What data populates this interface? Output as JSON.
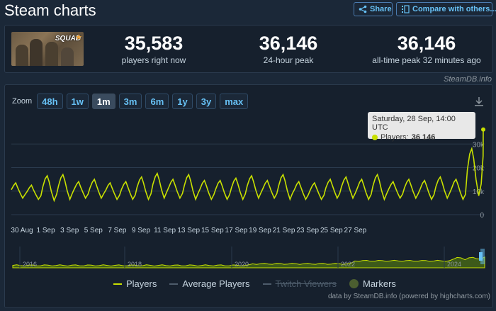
{
  "header": {
    "title": "Steam charts",
    "share_label": "Share",
    "compare_label": "Compare with others..."
  },
  "game": {
    "logo_text": "SQUAD"
  },
  "stats": [
    {
      "value": "35,583",
      "label": "players right now"
    },
    {
      "value": "36,146",
      "label": "24-hour peak"
    },
    {
      "value": "36,146",
      "label": "all-time peak 32 minutes ago"
    }
  ],
  "credit": "SteamDB.info",
  "zoom": {
    "label": "Zoom",
    "options": [
      "48h",
      "1w",
      "1m",
      "3m",
      "6m",
      "1y",
      "3y",
      "max"
    ],
    "active": "1m"
  },
  "tooltip": {
    "date": "Saturday, 28 Sep, 14:00 UTC",
    "series_label": "Players:",
    "value": "36 146"
  },
  "legend": {
    "players": "Players",
    "average": "Average Players",
    "twitch": "Twitch Viewers",
    "markers": "Markers"
  },
  "footer": "data by SteamDB.info (powered by highcharts.com)",
  "colors": {
    "background": "#1b2838",
    "panel": "#16202d",
    "accent": "#67c1f5",
    "players_line": "#c8e000"
  },
  "chart_data": {
    "type": "line",
    "y_tick_labels": [
      "0",
      "10k",
      "20k",
      "30k"
    ],
    "x_tick_labels": [
      "30 Aug",
      "1 Sep",
      "3 Sep",
      "5 Sep",
      "7 Sep",
      "9 Sep",
      "11 Sep",
      "13 Sep",
      "15 Sep",
      "17 Sep",
      "19 Sep",
      "21 Sep",
      "23 Sep",
      "25 Sep",
      "27 Sep"
    ],
    "ylim": [
      0,
      40000
    ],
    "grid": true,
    "series": [
      {
        "name": "Players",
        "x": [
          "29 Aug",
          "30 Aug",
          "31 Aug",
          "1 Sep",
          "2 Sep",
          "3 Sep",
          "4 Sep",
          "5 Sep",
          "6 Sep",
          "7 Sep",
          "8 Sep",
          "9 Sep",
          "10 Sep",
          "11 Sep",
          "12 Sep",
          "13 Sep",
          "14 Sep",
          "15 Sep",
          "16 Sep",
          "17 Sep",
          "18 Sep",
          "19 Sep",
          "20 Sep",
          "21 Sep",
          "22 Sep",
          "23 Sep",
          "24 Sep",
          "25 Sep",
          "26 Sep",
          "27 Sep",
          "28 Sep"
        ],
        "daily_peaks": [
          13500,
          12500,
          16500,
          17000,
          14000,
          15000,
          13500,
          14000,
          16000,
          17500,
          15000,
          17000,
          14500,
          14500,
          15500,
          16500,
          14500,
          17000,
          14000,
          13500,
          15000,
          16000,
          15000,
          17000,
          14000,
          15000,
          14500,
          16000,
          15000,
          28000,
          36146
        ],
        "daily_lows": [
          7000,
          6500,
          6000,
          6500,
          7000,
          7000,
          6500,
          6500,
          6500,
          7000,
          7000,
          6500,
          6500,
          6500,
          6500,
          7000,
          7000,
          6500,
          6500,
          6500,
          7000,
          7000,
          6500,
          6500,
          7000,
          7000,
          6500,
          7000,
          6500,
          8000,
          11000
        ]
      }
    ],
    "navigator": {
      "x_tick_labels": [
        "2016",
        "2018",
        "2020",
        "2022",
        "2024"
      ]
    }
  }
}
